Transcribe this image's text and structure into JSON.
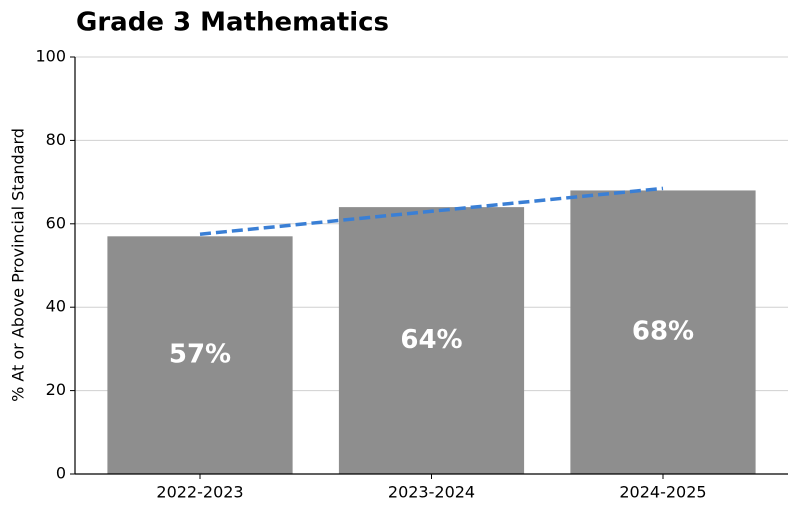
{
  "chart_data": {
    "type": "bar",
    "title": "Grade 3 Mathematics",
    "y_label": "% At or Above Provincial Standard",
    "categories": [
      "2022-2023",
      "2023-2024",
      "2024-2025"
    ],
    "series": [
      {
        "type": "bar",
        "color": "#8e8e8e",
        "values": [
          57,
          64,
          68
        ],
        "value_labels": [
          "57%",
          "64%",
          "68%"
        ]
      },
      {
        "type": "line",
        "color": "#3a7fd5",
        "dashed": true,
        "values": [
          57.5,
          63,
          68.5
        ]
      }
    ],
    "ylim": [
      0,
      100
    ],
    "yticks": [
      0,
      20,
      40,
      60,
      80,
      100
    ],
    "grid": true
  }
}
